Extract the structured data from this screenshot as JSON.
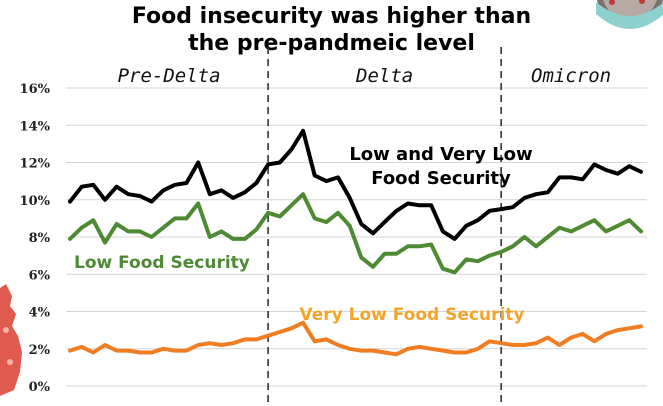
{
  "title_lines": [
    "Food insecurity was higher than",
    "the pre-pandmeic level"
  ],
  "colors": {
    "low_and_very_low": "#000000",
    "low": "#4e8a34",
    "very_low": "#f07d22",
    "very_low_label": "#f3a52b",
    "grid": "#d4d4d4",
    "divider": "#333333",
    "virus_blob": "#e05a4f",
    "virus_mask": "#8ecfd0"
  },
  "chart_data": {
    "type": "line",
    "ylim": [
      0,
      16
    ],
    "y_ticks": [
      0,
      2,
      4,
      6,
      8,
      10,
      12,
      14,
      16
    ],
    "y_tick_labels": [
      "0%",
      "2%",
      "4%",
      "6%",
      "8%",
      "10%",
      "12%",
      "14%",
      "16%"
    ],
    "grid": true,
    "x": [
      1,
      2,
      3,
      4,
      5,
      6,
      7,
      8,
      9,
      10,
      11,
      12,
      13,
      14,
      15,
      16,
      17,
      18,
      19,
      20,
      21,
      22,
      23,
      24,
      25,
      26,
      27,
      28,
      29,
      30,
      31,
      32,
      33,
      34,
      35,
      36,
      37,
      38,
      39,
      40,
      41,
      42,
      43,
      44,
      45,
      46,
      47,
      48,
      49,
      50
    ],
    "xlim": [
      1,
      50
    ],
    "periods": [
      {
        "label": "Pre-Delta",
        "start": 1,
        "end": 18
      },
      {
        "label": "Delta",
        "start": 18,
        "end": 38
      },
      {
        "label": "Omicron",
        "start": 38,
        "end": 50
      }
    ],
    "dividers": [
      18,
      38
    ],
    "series": [
      {
        "name": "Low and Very Low Food Security",
        "color": "#000000",
        "label_lines": [
          "Low and Very Low",
          "Food Security"
        ],
        "values": [
          9.9,
          10.7,
          10.8,
          10.0,
          10.7,
          10.3,
          10.2,
          9.9,
          10.5,
          10.8,
          10.9,
          12.0,
          10.3,
          10.5,
          10.1,
          10.4,
          10.9,
          11.9,
          12.0,
          12.7,
          13.7,
          11.3,
          11.0,
          11.2,
          10.1,
          8.7,
          8.2,
          8.8,
          9.4,
          9.8,
          9.7,
          9.7,
          8.3,
          7.9,
          8.6,
          8.9,
          9.4,
          9.5,
          9.6,
          10.1,
          10.3,
          10.4,
          11.2,
          11.2,
          11.1,
          11.9,
          11.6,
          11.4,
          11.8,
          11.5
        ]
      },
      {
        "name": "Low Food Security",
        "color": "#4e8a34",
        "label_lines": [
          "Low Food Security"
        ],
        "values": [
          7.9,
          8.5,
          8.9,
          7.7,
          8.7,
          8.3,
          8.3,
          8.0,
          8.5,
          9.0,
          9.0,
          9.8,
          8.0,
          8.3,
          7.9,
          7.9,
          8.4,
          9.3,
          9.1,
          9.7,
          10.3,
          9.0,
          8.8,
          9.3,
          8.6,
          6.9,
          6.4,
          7.1,
          7.1,
          7.5,
          7.5,
          7.6,
          6.3,
          6.1,
          6.8,
          6.7,
          7.0,
          7.2,
          7.5,
          8.0,
          7.5,
          8.0,
          8.5,
          8.3,
          8.6,
          8.9,
          8.3,
          8.6,
          8.9,
          8.3
        ]
      },
      {
        "name": "Very Low Food Security",
        "color": "#f07d22",
        "label_lines": [
          "Very Low Food Security"
        ],
        "values": [
          1.9,
          2.1,
          1.8,
          2.2,
          1.9,
          1.9,
          1.8,
          1.8,
          2.0,
          1.9,
          1.9,
          2.2,
          2.3,
          2.2,
          2.3,
          2.5,
          2.5,
          2.7,
          2.9,
          3.1,
          3.4,
          2.4,
          2.5,
          2.2,
          2.0,
          1.9,
          1.9,
          1.8,
          1.7,
          2.0,
          2.1,
          2.0,
          1.9,
          1.8,
          1.8,
          2.0,
          2.4,
          2.3,
          2.2,
          2.2,
          2.3,
          2.6,
          2.2,
          2.6,
          2.8,
          2.4,
          2.8,
          3.0,
          3.1,
          3.2
        ]
      }
    ]
  }
}
